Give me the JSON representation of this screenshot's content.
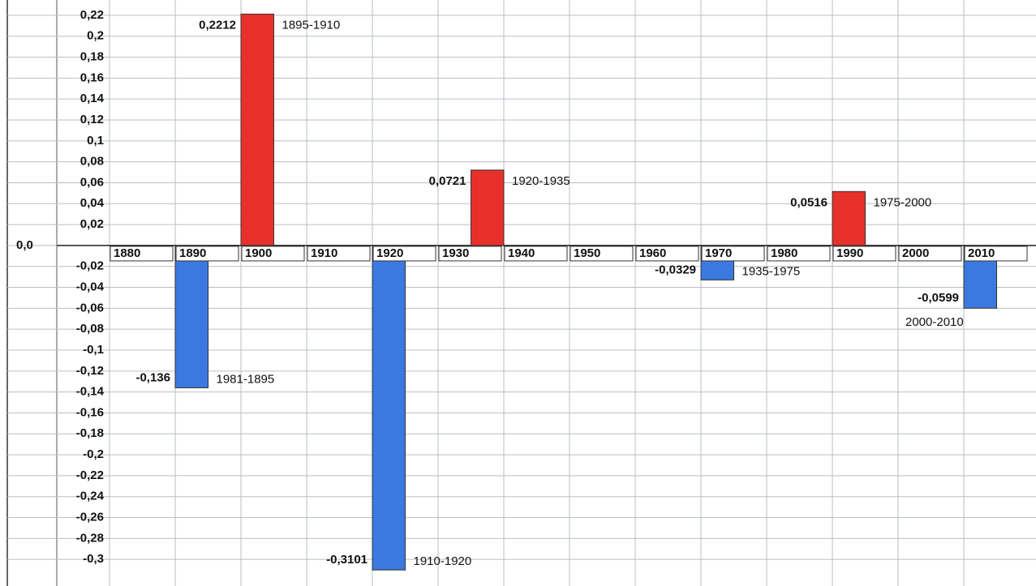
{
  "chart_data": {
    "type": "bar",
    "x": [
      1890,
      1900,
      1920,
      1935,
      1970,
      1990,
      2010
    ],
    "series": [
      {
        "values": [
          -0.136,
          0.2212,
          -0.3101,
          0.0721,
          -0.0329,
          0.0516,
          -0.0599
        ],
        "value_labels": [
          "-0,136",
          "0,2212",
          "-0,3101",
          "0,0721",
          "-0,0329",
          "0,0516",
          "-0,0599"
        ],
        "period_labels": [
          "1981-1895",
          "1895-1910",
          "1910-1920",
          "1920-1935",
          "1935-1975",
          "1975-2000",
          "2000-2010"
        ]
      }
    ],
    "positive_color": "#e8302a",
    "negative_color": "#3b79e0",
    "xlim": [
      1880,
      2020
    ],
    "xticks": [
      1880,
      1890,
      1900,
      1910,
      1920,
      1930,
      1940,
      1950,
      1960,
      1970,
      1980,
      1990,
      2000,
      2010
    ],
    "ylim": [
      -0.32,
      0.23
    ],
    "yticks": [
      {
        "value": 0.22,
        "label": "0,22"
      },
      {
        "value": 0.2,
        "label": "0,2"
      },
      {
        "value": 0.18,
        "label": "0,18"
      },
      {
        "value": 0.16,
        "label": "0,16"
      },
      {
        "value": 0.14,
        "label": "0,14"
      },
      {
        "value": 0.12,
        "label": "0,12"
      },
      {
        "value": 0.1,
        "label": "0,1"
      },
      {
        "value": 0.08,
        "label": "0,08"
      },
      {
        "value": 0.06,
        "label": "0,06"
      },
      {
        "value": 0.04,
        "label": "0,04"
      },
      {
        "value": 0.02,
        "label": "0,02"
      },
      {
        "value": 0,
        "label": "0,0"
      },
      {
        "value": -0.02,
        "label": "-0,02"
      },
      {
        "value": -0.04,
        "label": "-0,04"
      },
      {
        "value": -0.06,
        "label": "-0,06"
      },
      {
        "value": -0.08,
        "label": "-0,08"
      },
      {
        "value": -0.1,
        "label": "-0,1"
      },
      {
        "value": -0.12,
        "label": "-0,12"
      },
      {
        "value": -0.14,
        "label": "-0,14"
      },
      {
        "value": -0.16,
        "label": "-0,16"
      },
      {
        "value": -0.18,
        "label": "-0,18"
      },
      {
        "value": -0.2,
        "label": "-0,2"
      },
      {
        "value": -0.22,
        "label": "-0,22"
      },
      {
        "value": -0.24,
        "label": "-0,24"
      },
      {
        "value": -0.26,
        "label": "-0,26"
      },
      {
        "value": -0.28,
        "label": "-0,28"
      },
      {
        "value": -0.3,
        "label": "-0,3"
      }
    ],
    "grid": true
  }
}
